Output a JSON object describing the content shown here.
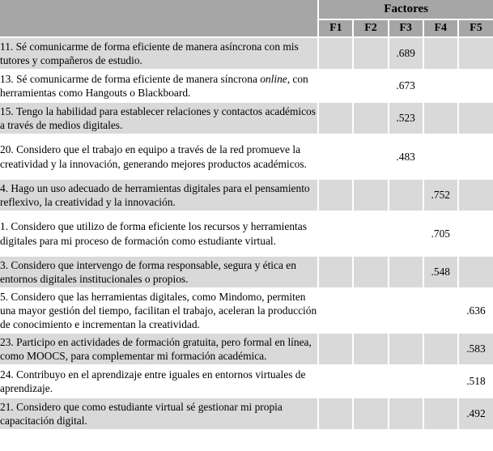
{
  "colors": {
    "header_bg": "#a6a6a6",
    "row_shaded_bg": "#d9d9d9",
    "row_plain_bg": "#ffffff",
    "grid_lines": "#ffffff",
    "text": "#000000"
  },
  "table": {
    "header": {
      "group_label": "Factores",
      "columns": [
        "F1",
        "F2",
        "F3",
        "F4",
        "F5"
      ]
    },
    "rows": [
      {
        "text": "11. Sé comunicarme de forma eficiente de manera asíncrona con mis tutores y compañeros de estudio.",
        "values": [
          "",
          "",
          ".689",
          "",
          ""
        ]
      },
      {
        "text": "13. Sé comunicarme de forma eficiente de manera síncrona ",
        "text_italic": "online",
        "text_post": ", con herramientas como Hangouts o Blackboard.",
        "values": [
          "",
          "",
          ".673",
          "",
          ""
        ]
      },
      {
        "text": "15. Tengo la habilidad para establecer relaciones y contactos académicos a través de medios digitales.",
        "values": [
          "",
          "",
          ".523",
          "",
          ""
        ]
      },
      {
        "text": "20. Considero que el trabajo en equipo a través de la red promueve la creatividad y la innovación, generando mejores productos académicos.",
        "values": [
          "",
          "",
          ".483",
          "",
          ""
        ]
      },
      {
        "text": "4. Hago un uso adecuado de herramientas digitales para el pensamiento reflexivo, la creatividad y la innovación.",
        "values": [
          "",
          "",
          "",
          ".752",
          ""
        ]
      },
      {
        "text": "1. Considero que utilizo de forma eficiente los recursos y herramientas digitales para mi proceso de formación como estudiante virtual.",
        "values": [
          "",
          "",
          "",
          ".705",
          ""
        ]
      },
      {
        "text": "3. Considero que intervengo de forma responsable, segura y ética en entornos digitales institucionales o propios.",
        "values": [
          "",
          "",
          "",
          ".548",
          ""
        ]
      },
      {
        "text": "5. Considero que las herramientas digitales, como Mindomo, permiten una mayor gestión del tiempo, facilitan el trabajo, aceleran la producción de conocimiento e incrementan la creatividad.",
        "values": [
          "",
          "",
          "",
          "",
          ".636"
        ]
      },
      {
        "text": "23. Participo en actividades de formación gratuita, pero formal en línea, como MOOCS, para complementar mi formación académica.",
        "values": [
          "",
          "",
          "",
          "",
          ".583"
        ]
      },
      {
        "text": "24. Contribuyo en el aprendizaje entre iguales en entornos virtuales de aprendizaje.",
        "values": [
          "",
          "",
          "",
          "",
          ".518"
        ]
      },
      {
        "text": "21. Considero que como estudiante virtual sé gestionar mi propia capacitación digital.",
        "values": [
          "",
          "",
          "",
          "",
          ".492"
        ]
      }
    ]
  }
}
